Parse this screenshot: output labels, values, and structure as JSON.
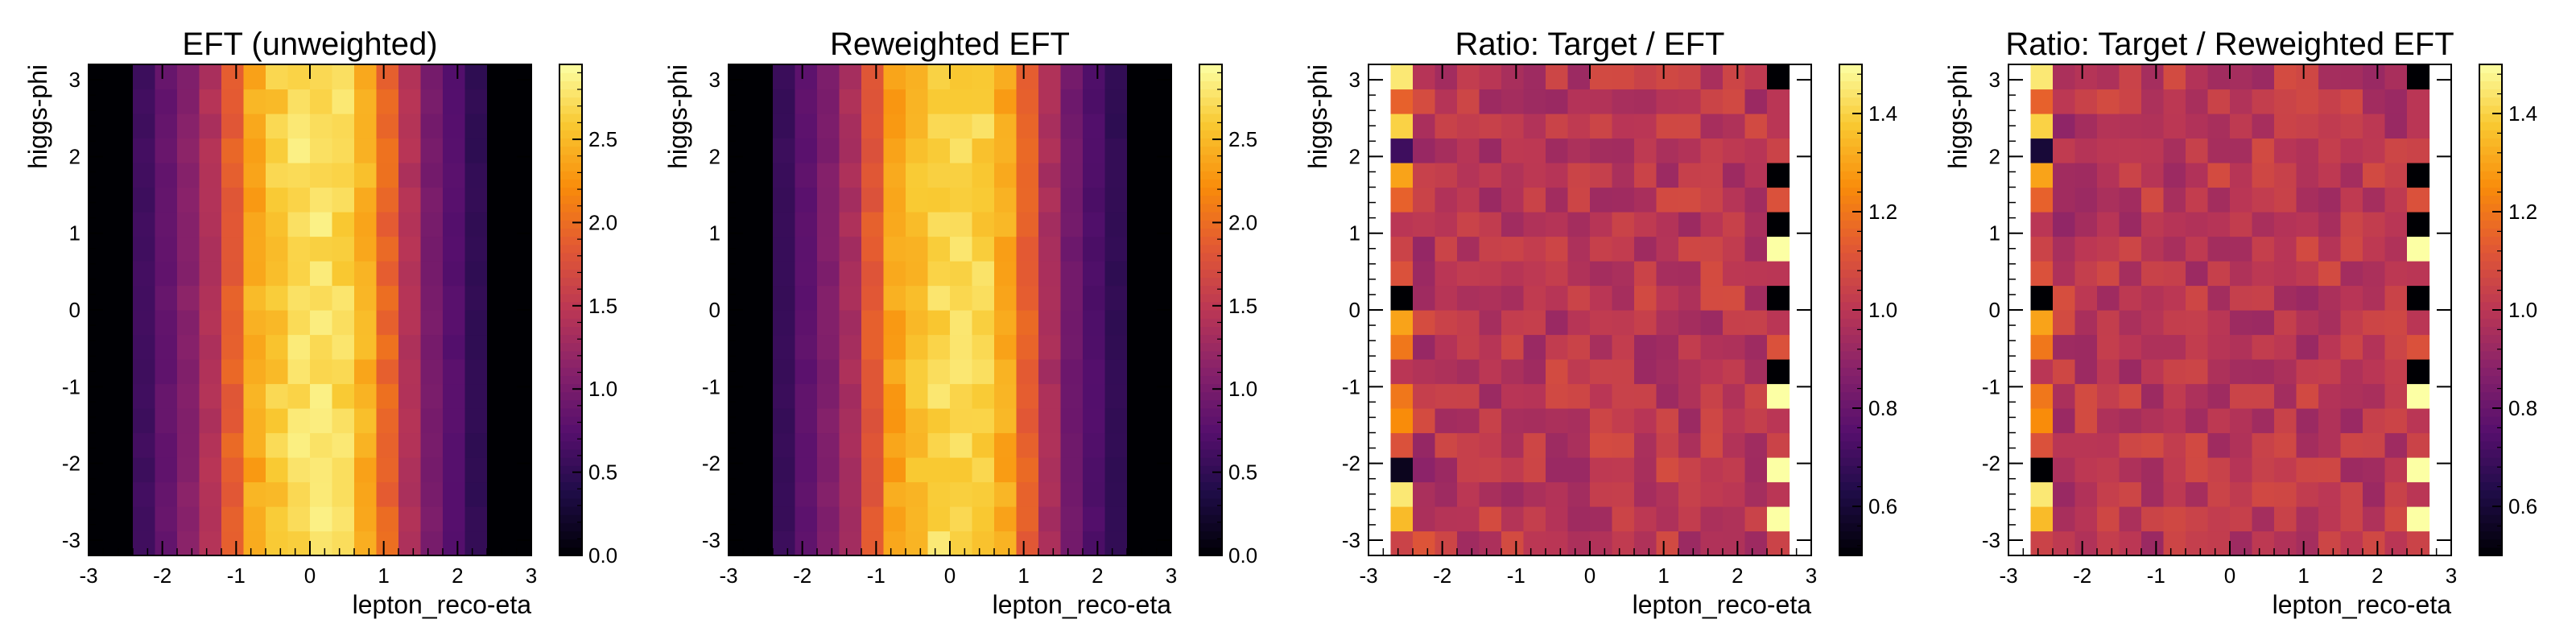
{
  "chart_data": [
    {
      "type": "heatmap",
      "title": "EFT (unweighted)",
      "xlabel": "lepton_reco-eta",
      "ylabel": "higgs-phi",
      "xlim": [
        -3,
        3
      ],
      "ylim": [
        -3.2,
        3.2
      ],
      "x_ticks": [
        "-3",
        "-2",
        "-1",
        "0",
        "1",
        "2",
        "3"
      ],
      "y_ticks": [
        "-3",
        "-2",
        "-1",
        "0",
        "1",
        "2",
        "3"
      ],
      "colorbar": {
        "range": [
          0.0,
          2.95
        ],
        "colormap": "inferno",
        "ticks": [
          "0.0",
          "0.5",
          "1.0",
          "1.5",
          "2.0",
          "2.5"
        ]
      },
      "x_bin_edges": [
        -3.0,
        -2.7,
        -2.4,
        -2.1,
        -1.8,
        -1.5,
        -1.2,
        -0.9,
        -0.6,
        -0.3,
        0.0,
        0.3,
        0.6,
        0.9,
        1.2,
        1.5,
        1.8,
        2.1,
        2.4,
        2.7,
        3.0
      ],
      "n_y_bins": 20,
      "column_means": [
        0.0,
        0.0,
        0.6,
        0.85,
        1.1,
        1.4,
        1.9,
        2.4,
        2.6,
        2.75,
        2.75,
        2.7,
        2.45,
        1.95,
        1.4,
        1.0,
        0.75,
        0.5,
        0.0,
        0.0
      ]
    },
    {
      "type": "heatmap",
      "title": "Reweighted EFT",
      "xlabel": "lepton_reco-eta",
      "ylabel": "higgs-phi",
      "xlim": [
        -3,
        3
      ],
      "ylim": [
        -3.2,
        3.2
      ],
      "x_ticks": [
        "-3",
        "-2",
        "-1",
        "0",
        "1",
        "2",
        "3"
      ],
      "y_ticks": [
        "-3",
        "-2",
        "-1",
        "0",
        "1",
        "2",
        "3"
      ],
      "colorbar": {
        "range": [
          0.0,
          2.95
        ],
        "colormap": "inferno",
        "ticks": [
          "0.0",
          "0.5",
          "1.0",
          "1.5",
          "2.0",
          "2.5"
        ]
      },
      "x_bin_edges": [
        -3.0,
        -2.7,
        -2.4,
        -2.1,
        -1.8,
        -1.5,
        -1.2,
        -0.9,
        -0.6,
        -0.3,
        0.0,
        0.3,
        0.6,
        0.9,
        1.2,
        1.5,
        1.8,
        2.1,
        2.4,
        2.7,
        3.0
      ],
      "n_y_bins": 20,
      "column_means": [
        0.0,
        0.0,
        0.55,
        0.8,
        1.05,
        1.35,
        1.85,
        2.35,
        2.55,
        2.7,
        2.7,
        2.65,
        2.4,
        1.9,
        1.35,
        0.95,
        0.7,
        0.5,
        0.0,
        0.0
      ]
    },
    {
      "type": "heatmap",
      "title": "Ratio: Target / EFT",
      "xlabel": "lepton_reco-eta",
      "ylabel": "higgs-phi",
      "xlim": [
        -3,
        3
      ],
      "ylim": [
        -3.2,
        3.2
      ],
      "x_ticks": [
        "-3",
        "-2",
        "-1",
        "0",
        "1",
        "2",
        "3"
      ],
      "y_ticks": [
        "-3",
        "-2",
        "-1",
        "0",
        "1",
        "2",
        "3"
      ],
      "colorbar": {
        "range": [
          0.5,
          1.5
        ],
        "colormap": "inferno",
        "ticks": [
          "0.6",
          "0.8",
          "1.0",
          "1.2",
          "1.4"
        ]
      },
      "x_bin_edges": [
        -2.7,
        -2.4,
        -2.1,
        -1.8,
        -1.5,
        -1.2,
        -0.9,
        -0.6,
        -0.3,
        0.0,
        0.3,
        0.6,
        0.9,
        1.2,
        1.5,
        1.8,
        2.1,
        2.4,
        2.7
      ],
      "n_y_bins": 20,
      "typical_value": 1.0,
      "first_column": [
        1.05,
        1.35,
        1.45,
        0.55,
        1.1,
        1.25,
        1.2,
        1.0,
        1.2,
        1.3,
        0.5,
        1.1,
        1.05,
        1.0,
        1.15,
        1.3,
        0.7,
        1.4,
        1.15,
        1.45
      ],
      "last_column": [
        1.05,
        1.5,
        1.0,
        1.5,
        1.05,
        1.0,
        1.5,
        0.5,
        1.1,
        1.0,
        0.5,
        1.0,
        1.5,
        0.5,
        1.1,
        0.5,
        1.05,
        1.0,
        1.0,
        0.5
      ]
    },
    {
      "type": "heatmap",
      "title": "Ratio: Target / Reweighted EFT",
      "xlabel": "lepton_reco-eta",
      "ylabel": "higgs-phi",
      "xlim": [
        -3,
        3
      ],
      "ylim": [
        -3.2,
        3.2
      ],
      "x_ticks": [
        "-3",
        "-2",
        "-1",
        "0",
        "1",
        "2",
        "3"
      ],
      "y_ticks": [
        "-3",
        "-2",
        "-1",
        "0",
        "1",
        "2",
        "3"
      ],
      "colorbar": {
        "range": [
          0.5,
          1.5
        ],
        "colormap": "inferno",
        "ticks": [
          "0.6",
          "0.8",
          "1.0",
          "1.2",
          "1.4"
        ]
      },
      "x_bin_edges": [
        -2.7,
        -2.4,
        -2.1,
        -1.8,
        -1.5,
        -1.2,
        -0.9,
        -0.6,
        -0.3,
        0.0,
        0.3,
        0.6,
        0.9,
        1.2,
        1.5,
        1.8,
        2.1,
        2.4,
        2.7
      ],
      "n_y_bins": 20,
      "typical_value": 1.0,
      "first_column": [
        1.05,
        1.35,
        1.45,
        0.5,
        1.1,
        1.25,
        1.2,
        1.0,
        1.2,
        1.3,
        0.5,
        1.1,
        1.05,
        1.0,
        1.15,
        1.3,
        0.6,
        1.4,
        1.15,
        1.45
      ],
      "last_column": [
        1.05,
        1.5,
        1.0,
        1.5,
        1.05,
        1.0,
        1.5,
        0.5,
        1.1,
        1.0,
        0.5,
        1.0,
        1.5,
        0.5,
        1.1,
        0.5,
        1.05,
        1.0,
        1.0,
        0.5
      ]
    }
  ]
}
